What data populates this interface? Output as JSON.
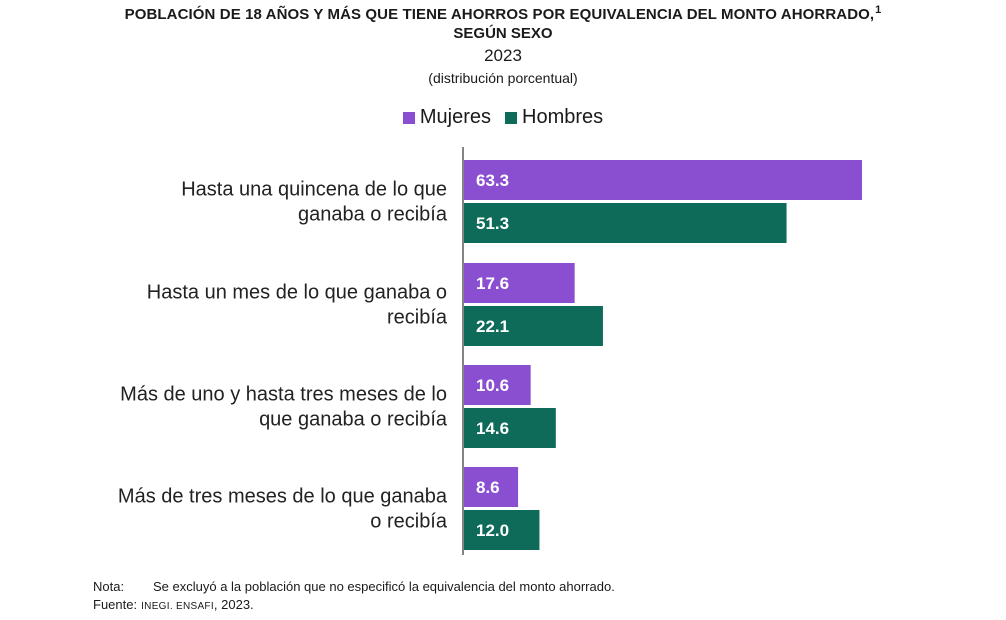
{
  "colors": {
    "mujeres": "#8a4fd0",
    "hombres": "#0e6b5a",
    "axis": "#333333"
  },
  "chart_data": {
    "type": "bar",
    "orientation": "horizontal",
    "title": "POBLACIÓN DE 18 AÑOS Y MÁS QUE TIENE AHORROS POR EQUIVALENCIA DEL MONTO AHORRADO,",
    "title_superscript": "1",
    "title_line2": "SEGÚN SEXO",
    "subtitle": "2023",
    "unit_label": "(distribución porcentual)",
    "legend_position": "top",
    "grid": false,
    "xlim": [
      0,
      70
    ],
    "categories": [
      [
        "Hasta una quincena de lo que",
        "ganaba o recibía"
      ],
      [
        "Hasta un mes de lo que  ganaba o",
        "recibía"
      ],
      [
        "Más de uno y hasta tres meses de lo",
        "que ganaba o recibía"
      ],
      [
        "Más de tres meses de lo que  ganaba",
        "o recibía"
      ]
    ],
    "series": [
      {
        "name": "Mujeres",
        "values": [
          63.3,
          17.6,
          10.6,
          8.6
        ],
        "labels": [
          "63.3",
          "17.6",
          "10.6",
          "8.6"
        ]
      },
      {
        "name": "Hombres",
        "values": [
          51.3,
          22.1,
          14.6,
          12.0
        ],
        "labels": [
          "51.3",
          "22.1",
          "14.6",
          "12.0"
        ]
      }
    ]
  },
  "notes": {
    "nota_key": "Nota:",
    "nota_text": "Se excluyó a la población que no especificó la equivalencia del monto ahorrado.",
    "fuente_key": "Fuente:",
    "fuente_org": "INEGI. ENSAFI",
    "fuente_year": ", 2023."
  }
}
